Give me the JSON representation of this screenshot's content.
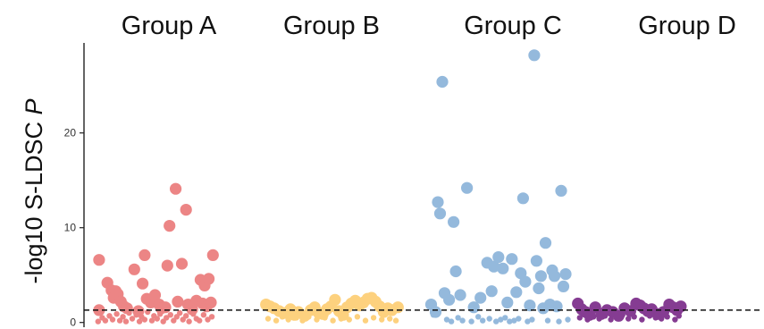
{
  "chart_data": {
    "type": "scatter",
    "title": "",
    "xlabel": "",
    "ylabel": "-log10 S-LDSC",
    "ylabel_italic": "P",
    "ylim": [
      -0.5,
      29.5
    ],
    "yticks": [
      0,
      10,
      20
    ],
    "ytick_labels": [
      "0",
      "10",
      "20"
    ],
    "threshold": 1.3,
    "threshold_style": "dashed",
    "grid": false,
    "legend": "none",
    "groups": [
      {
        "name": "Group A",
        "color": "#ec8585",
        "large": [
          {
            "x": 0.06,
            "y": 6.6
          },
          {
            "x": 0.14,
            "y": 4.2
          },
          {
            "x": 0.18,
            "y": 3.4
          },
          {
            "x": 0.2,
            "y": 2.6
          },
          {
            "x": 0.22,
            "y": 3.3
          },
          {
            "x": 0.24,
            "y": 3.0
          },
          {
            "x": 0.27,
            "y": 2.2
          },
          {
            "x": 0.3,
            "y": 1.7
          },
          {
            "x": 0.33,
            "y": 1.5
          },
          {
            "x": 0.06,
            "y": 1.3
          },
          {
            "x": 0.4,
            "y": 5.6
          },
          {
            "x": 0.44,
            "y": 1.2
          },
          {
            "x": 0.5,
            "y": 7.1
          },
          {
            "x": 0.48,
            "y": 4.1
          },
          {
            "x": 0.52,
            "y": 2.5
          },
          {
            "x": 0.56,
            "y": 2.1
          },
          {
            "x": 0.6,
            "y": 2.9
          },
          {
            "x": 0.64,
            "y": 1.9
          },
          {
            "x": 0.66,
            "y": 1.5
          },
          {
            "x": 0.72,
            "y": 6.0
          },
          {
            "x": 0.74,
            "y": 10.2
          },
          {
            "x": 0.8,
            "y": 14.1
          },
          {
            "x": 0.82,
            "y": 2.2
          },
          {
            "x": 0.86,
            "y": 6.2
          },
          {
            "x": 0.9,
            "y": 11.9
          },
          {
            "x": 0.92,
            "y": 1.9
          },
          {
            "x": 0.96,
            "y": 1.4
          },
          {
            "x": 1.0,
            "y": 2.3
          },
          {
            "x": 1.04,
            "y": 4.5
          },
          {
            "x": 1.06,
            "y": 2.0
          },
          {
            "x": 1.08,
            "y": 3.9
          },
          {
            "x": 1.1,
            "y": 1.7
          },
          {
            "x": 1.12,
            "y": 4.6
          },
          {
            "x": 1.14,
            "y": 2.1
          },
          {
            "x": 1.16,
            "y": 7.1
          },
          {
            "x": 0.7,
            "y": 1.6
          }
        ],
        "small": [
          {
            "x": 0.05,
            "y": 0.1
          },
          {
            "x": 0.09,
            "y": 0.5
          },
          {
            "x": 0.12,
            "y": 0.2
          },
          {
            "x": 0.16,
            "y": 0.7
          },
          {
            "x": 0.19,
            "y": 0.3
          },
          {
            "x": 0.23,
            "y": 0.9
          },
          {
            "x": 0.26,
            "y": 0.2
          },
          {
            "x": 0.29,
            "y": 0.6
          },
          {
            "x": 0.32,
            "y": 0.1
          },
          {
            "x": 0.35,
            "y": 1.0
          },
          {
            "x": 0.38,
            "y": 0.4
          },
          {
            "x": 0.42,
            "y": 0.8
          },
          {
            "x": 0.45,
            "y": 0.1
          },
          {
            "x": 0.47,
            "y": 0.6
          },
          {
            "x": 0.5,
            "y": 0.3
          },
          {
            "x": 0.53,
            "y": 1.1
          },
          {
            "x": 0.57,
            "y": 0.2
          },
          {
            "x": 0.59,
            "y": 0.7
          },
          {
            "x": 0.62,
            "y": 0.4
          },
          {
            "x": 0.65,
            "y": 0.9
          },
          {
            "x": 0.68,
            "y": 0.1
          },
          {
            "x": 0.71,
            "y": 0.5
          },
          {
            "x": 0.75,
            "y": 0.8
          },
          {
            "x": 0.78,
            "y": 0.2
          },
          {
            "x": 0.81,
            "y": 0.6
          },
          {
            "x": 0.84,
            "y": 1.0
          },
          {
            "x": 0.87,
            "y": 0.3
          },
          {
            "x": 0.9,
            "y": 0.7
          },
          {
            "x": 0.93,
            "y": 0.1
          },
          {
            "x": 0.97,
            "y": 0.9
          },
          {
            "x": 1.0,
            "y": 0.4
          },
          {
            "x": 1.03,
            "y": 0.2
          },
          {
            "x": 1.07,
            "y": 0.8
          },
          {
            "x": 1.11,
            "y": 0.3
          },
          {
            "x": 1.15,
            "y": 0.6
          }
        ]
      },
      {
        "name": "Group B",
        "color": "#fdd17e",
        "large": [
          {
            "x": 0.06,
            "y": 1.9
          },
          {
            "x": 0.1,
            "y": 1.7
          },
          {
            "x": 0.14,
            "y": 1.5
          },
          {
            "x": 0.19,
            "y": 1.2
          },
          {
            "x": 0.24,
            "y": 1.0
          },
          {
            "x": 0.3,
            "y": 1.4
          },
          {
            "x": 0.34,
            "y": 0.8
          },
          {
            "x": 0.38,
            "y": 1.1
          },
          {
            "x": 0.44,
            "y": 0.7
          },
          {
            "x": 0.5,
            "y": 1.3
          },
          {
            "x": 0.54,
            "y": 1.6
          },
          {
            "x": 0.58,
            "y": 1.0
          },
          {
            "x": 0.62,
            "y": 0.9
          },
          {
            "x": 0.66,
            "y": 1.4
          },
          {
            "x": 0.7,
            "y": 1.7
          },
          {
            "x": 0.74,
            "y": 2.4
          },
          {
            "x": 0.78,
            "y": 1.2
          },
          {
            "x": 0.82,
            "y": 0.8
          },
          {
            "x": 0.86,
            "y": 1.6
          },
          {
            "x": 0.9,
            "y": 2.0
          },
          {
            "x": 0.94,
            "y": 2.3
          },
          {
            "x": 0.98,
            "y": 1.8
          },
          {
            "x": 1.02,
            "y": 2.1
          },
          {
            "x": 1.06,
            "y": 2.5
          },
          {
            "x": 1.1,
            "y": 2.6
          },
          {
            "x": 1.14,
            "y": 2.2
          },
          {
            "x": 1.18,
            "y": 1.7
          },
          {
            "x": 1.22,
            "y": 1.1
          },
          {
            "x": 1.26,
            "y": 1.5
          },
          {
            "x": 1.3,
            "y": 1.3
          },
          {
            "x": 1.36,
            "y": 1.6
          }
        ],
        "small": [
          {
            "x": 0.08,
            "y": 0.4
          },
          {
            "x": 0.16,
            "y": 0.2
          },
          {
            "x": 0.22,
            "y": 0.6
          },
          {
            "x": 0.28,
            "y": 0.3
          },
          {
            "x": 0.36,
            "y": 0.5
          },
          {
            "x": 0.42,
            "y": 0.2
          },
          {
            "x": 0.48,
            "y": 0.6
          },
          {
            "x": 0.56,
            "y": 0.3
          },
          {
            "x": 0.64,
            "y": 0.5
          },
          {
            "x": 0.72,
            "y": 0.2
          },
          {
            "x": 0.8,
            "y": 0.4
          },
          {
            "x": 0.88,
            "y": 0.3
          },
          {
            "x": 0.96,
            "y": 0.6
          },
          {
            "x": 1.04,
            "y": 0.2
          },
          {
            "x": 1.12,
            "y": 0.5
          },
          {
            "x": 1.2,
            "y": 0.3
          },
          {
            "x": 1.28,
            "y": 0.4
          },
          {
            "x": 1.34,
            "y": 0.2
          }
        ]
      },
      {
        "name": "Group C",
        "color": "#94b9dc",
        "large": [
          {
            "x": 0.18,
            "y": 25.4
          },
          {
            "x": 0.14,
            "y": 12.7
          },
          {
            "x": 0.16,
            "y": 11.5
          },
          {
            "x": 0.28,
            "y": 10.6
          },
          {
            "x": 0.4,
            "y": 14.2
          },
          {
            "x": 0.08,
            "y": 1.9
          },
          {
            "x": 0.12,
            "y": 1.1
          },
          {
            "x": 0.2,
            "y": 3.1
          },
          {
            "x": 0.24,
            "y": 2.4
          },
          {
            "x": 0.3,
            "y": 5.4
          },
          {
            "x": 0.34,
            "y": 2.9
          },
          {
            "x": 0.46,
            "y": 1.6
          },
          {
            "x": 0.52,
            "y": 2.6
          },
          {
            "x": 0.58,
            "y": 6.3
          },
          {
            "x": 0.62,
            "y": 3.3
          },
          {
            "x": 0.64,
            "y": 5.9
          },
          {
            "x": 0.68,
            "y": 6.9
          },
          {
            "x": 0.72,
            "y": 5.7
          },
          {
            "x": 0.76,
            "y": 2.1
          },
          {
            "x": 0.8,
            "y": 6.7
          },
          {
            "x": 0.84,
            "y": 3.2
          },
          {
            "x": 0.88,
            "y": 5.2
          },
          {
            "x": 0.9,
            "y": 13.1
          },
          {
            "x": 0.92,
            "y": 4.3
          },
          {
            "x": 0.96,
            "y": 1.8
          },
          {
            "x": 1.0,
            "y": 28.2
          },
          {
            "x": 1.02,
            "y": 6.5
          },
          {
            "x": 1.04,
            "y": 3.6
          },
          {
            "x": 1.06,
            "y": 4.9
          },
          {
            "x": 1.08,
            "y": 1.5
          },
          {
            "x": 1.1,
            "y": 8.4
          },
          {
            "x": 1.14,
            "y": 1.9
          },
          {
            "x": 1.16,
            "y": 5.5
          },
          {
            "x": 1.2,
            "y": 1.7
          },
          {
            "x": 1.24,
            "y": 13.9
          },
          {
            "x": 1.26,
            "y": 3.8
          },
          {
            "x": 1.28,
            "y": 5.1
          },
          {
            "x": 1.18,
            "y": 4.9
          }
        ],
        "small": [
          {
            "x": 0.1,
            "y": 0.8
          },
          {
            "x": 0.22,
            "y": 0.3
          },
          {
            "x": 0.26,
            "y": 0.1
          },
          {
            "x": 0.32,
            "y": 0.5
          },
          {
            "x": 0.36,
            "y": 0.2
          },
          {
            "x": 0.44,
            "y": 0.1
          },
          {
            "x": 0.5,
            "y": 0.6
          },
          {
            "x": 0.54,
            "y": 0.2
          },
          {
            "x": 0.6,
            "y": 0.4
          },
          {
            "x": 0.66,
            "y": 0.1
          },
          {
            "x": 0.7,
            "y": 0.3
          },
          {
            "x": 0.74,
            "y": 0.5
          },
          {
            "x": 0.78,
            "y": 0.1
          },
          {
            "x": 0.82,
            "y": 0.2
          },
          {
            "x": 0.86,
            "y": 0.4
          },
          {
            "x": 0.94,
            "y": 0.1
          },
          {
            "x": 0.98,
            "y": 0.3
          },
          {
            "x": 1.12,
            "y": 0.2
          },
          {
            "x": 1.22,
            "y": 0.1
          },
          {
            "x": 1.3,
            "y": 0.3
          }
        ]
      },
      {
        "name": "Group D",
        "color": "#853c92",
        "large": [
          {
            "x": 0.08,
            "y": 2.0
          },
          {
            "x": 0.12,
            "y": 1.4
          },
          {
            "x": 0.16,
            "y": 1.1
          },
          {
            "x": 0.2,
            "y": 0.8
          },
          {
            "x": 0.26,
            "y": 1.6
          },
          {
            "x": 0.32,
            "y": 0.9
          },
          {
            "x": 0.38,
            "y": 1.3
          },
          {
            "x": 0.44,
            "y": 1.1
          },
          {
            "x": 0.5,
            "y": 0.7
          },
          {
            "x": 0.56,
            "y": 1.5
          },
          {
            "x": 0.62,
            "y": 1.2
          },
          {
            "x": 0.68,
            "y": 2.0
          },
          {
            "x": 0.72,
            "y": 1.8
          },
          {
            "x": 0.76,
            "y": 1.5
          },
          {
            "x": 0.8,
            "y": 1.2
          },
          {
            "x": 0.84,
            "y": 1.4
          },
          {
            "x": 0.9,
            "y": 0.9
          },
          {
            "x": 0.96,
            "y": 1.1
          },
          {
            "x": 1.02,
            "y": 1.9
          },
          {
            "x": 1.06,
            "y": 1.6
          },
          {
            "x": 1.1,
            "y": 1.3
          },
          {
            "x": 1.14,
            "y": 1.7
          }
        ],
        "small": [
          {
            "x": 0.1,
            "y": 0.5
          },
          {
            "x": 0.18,
            "y": 0.3
          },
          {
            "x": 0.24,
            "y": 0.6
          },
          {
            "x": 0.3,
            "y": 0.4
          },
          {
            "x": 0.36,
            "y": 0.7
          },
          {
            "x": 0.42,
            "y": 0.3
          },
          {
            "x": 0.48,
            "y": 0.5
          },
          {
            "x": 0.54,
            "y": 0.8
          },
          {
            "x": 0.6,
            "y": 0.4
          },
          {
            "x": 0.66,
            "y": 0.6
          },
          {
            "x": 0.74,
            "y": 0.3
          },
          {
            "x": 0.82,
            "y": 0.7
          },
          {
            "x": 0.88,
            "y": 0.5
          },
          {
            "x": 0.94,
            "y": 0.4
          },
          {
            "x": 1.0,
            "y": 0.6
          },
          {
            "x": 1.08,
            "y": 0.3
          },
          {
            "x": 1.12,
            "y": 0.7
          }
        ]
      }
    ]
  }
}
